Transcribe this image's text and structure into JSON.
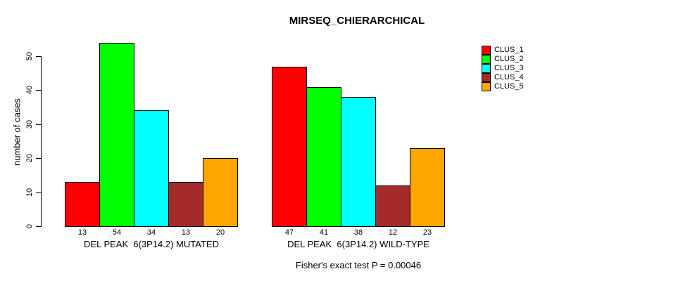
{
  "chart_data": {
    "type": "bar",
    "title": "MIRSEQ_CHIERARCHICAL",
    "ylabel": "number of cases",
    "footnote": "Fisher's exact test P = 0.00046",
    "ylim": [
      0,
      50
    ],
    "yticks": [
      0,
      10,
      20,
      30,
      40,
      50
    ],
    "grid": false,
    "legend_position": "right",
    "categories": [
      "DEL PEAK  6(3P14.2) MUTATED",
      "DEL PEAK  6(3P14.2) WILD-TYPE"
    ],
    "series": [
      {
        "name": "CLUS_1",
        "color": "#FF0000",
        "values": [
          13,
          47
        ]
      },
      {
        "name": "CLUS_2",
        "color": "#00FF00",
        "values": [
          54,
          41
        ]
      },
      {
        "name": "CLUS_3",
        "color": "#00FFFF",
        "values": [
          34,
          38
        ]
      },
      {
        "name": "CLUS_4",
        "color": "#A52A2A",
        "values": [
          13,
          12
        ]
      },
      {
        "name": "CLUS_5",
        "color": "#FFA500",
        "values": [
          20,
          23
        ]
      }
    ],
    "bar_value_labels_shown": true,
    "colors": {
      "background": "#FFFFFF",
      "axis": "#000000",
      "bar_border": "#000000",
      "text": "#000000"
    }
  }
}
